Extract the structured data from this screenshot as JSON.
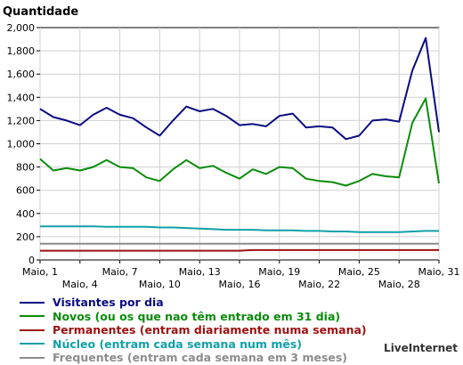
{
  "chart_data": {
    "type": "line",
    "title": "Quantidade",
    "ylim": [
      0,
      2000
    ],
    "y_ticks": [
      "0",
      "200",
      "400",
      "600",
      "800",
      "1,000",
      "1,200",
      "1,400",
      "1,600",
      "1,800",
      "2,000"
    ],
    "x_tick_labels": [
      {
        "day": 1,
        "label": "Maio, 1",
        "row": 1
      },
      {
        "day": 4,
        "label": "Maio, 4",
        "row": 2
      },
      {
        "day": 7,
        "label": "Maio, 7",
        "row": 1
      },
      {
        "day": 10,
        "label": "Maio, 10",
        "row": 2
      },
      {
        "day": 13,
        "label": "Maio, 13",
        "row": 1
      },
      {
        "day": 16,
        "label": "Maio, 16",
        "row": 2
      },
      {
        "day": 19,
        "label": "Maio, 19",
        "row": 1
      },
      {
        "day": 22,
        "label": "Maio, 22",
        "row": 2
      },
      {
        "day": 25,
        "label": "Maio, 25",
        "row": 1
      },
      {
        "day": 28,
        "label": "Maio, 28",
        "row": 2
      },
      {
        "day": 31,
        "label": "Maio, 31",
        "row": 1
      }
    ],
    "grid": true,
    "x": [
      1,
      2,
      3,
      4,
      5,
      6,
      7,
      8,
      9,
      10,
      11,
      12,
      13,
      14,
      15,
      16,
      17,
      18,
      19,
      20,
      21,
      22,
      23,
      24,
      25,
      26,
      27,
      28,
      29,
      30,
      31
    ],
    "series": [
      {
        "name": "Visitantes por dia",
        "color": "#0a0a82",
        "values": [
          1300,
          1230,
          1200,
          1160,
          1250,
          1310,
          1250,
          1220,
          1140,
          1070,
          1200,
          1320,
          1280,
          1300,
          1240,
          1160,
          1170,
          1150,
          1240,
          1260,
          1140,
          1150,
          1140,
          1040,
          1070,
          1200,
          1210,
          1190,
          1630,
          1910,
          1100
        ]
      },
      {
        "name": "Novos (ou os que nao têm entrado em 31 dia)",
        "color": "#0a8c0a",
        "values": [
          870,
          770,
          790,
          770,
          800,
          860,
          800,
          790,
          710,
          680,
          780,
          860,
          790,
          810,
          750,
          700,
          780,
          740,
          800,
          790,
          700,
          680,
          670,
          640,
          680,
          740,
          720,
          710,
          1180,
          1390,
          660
        ]
      },
      {
        "name": "Permanentes (entram diariamente numa semana)",
        "color": "#9e1010",
        "values": [
          80,
          80,
          80,
          80,
          80,
          80,
          80,
          80,
          80,
          80,
          80,
          80,
          80,
          80,
          80,
          80,
          85,
          85,
          85,
          85,
          85,
          85,
          85,
          85,
          85,
          85,
          85,
          85,
          85,
          85,
          85
        ]
      },
      {
        "name": "Núcleo (entram cada semana num mês)",
        "color": "#10a0a8",
        "values": [
          290,
          290,
          290,
          290,
          290,
          285,
          285,
          285,
          285,
          280,
          280,
          275,
          270,
          265,
          260,
          260,
          260,
          255,
          255,
          255,
          250,
          250,
          245,
          245,
          240,
          240,
          240,
          240,
          245,
          250,
          250
        ]
      },
      {
        "name": "Frequentes (entram cada semana em 3 meses)",
        "color": "#8c8c8c",
        "values": [
          140,
          140,
          140,
          140,
          140,
          140,
          140,
          140,
          140,
          140,
          140,
          140,
          140,
          140,
          140,
          140,
          140,
          140,
          140,
          140,
          140,
          140,
          140,
          140,
          140,
          140,
          140,
          140,
          140,
          140,
          140
        ]
      }
    ]
  },
  "credit": "LiveInternet"
}
